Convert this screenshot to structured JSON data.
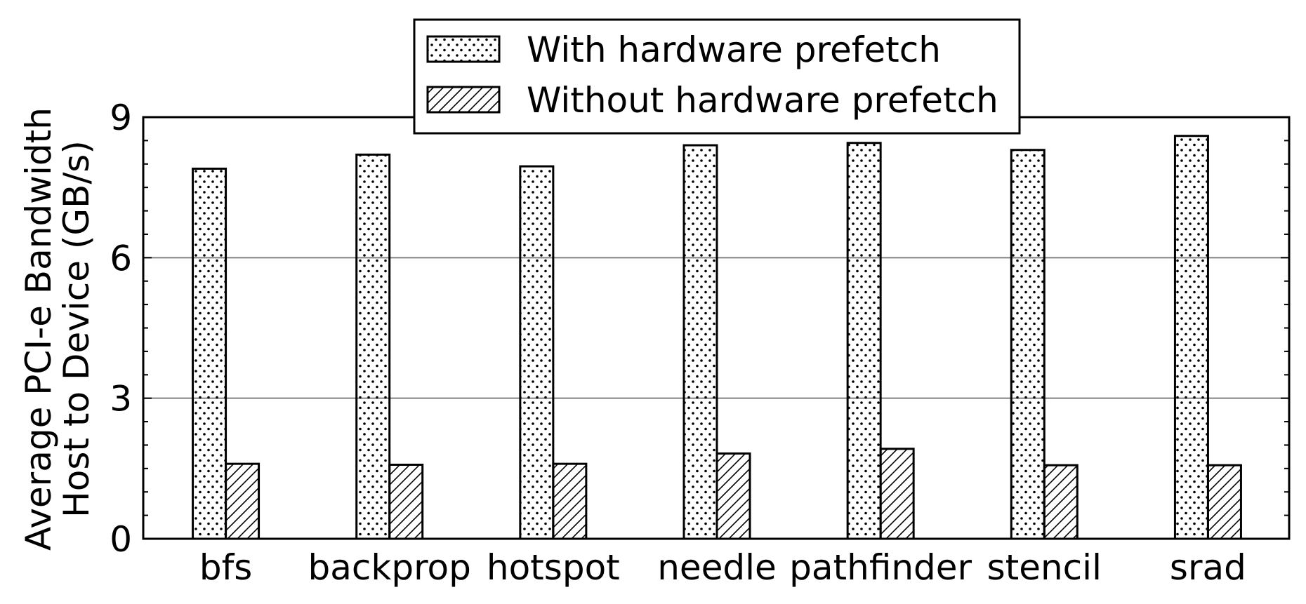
{
  "chart_data": {
    "type": "bar",
    "categories": [
      "bfs",
      "backprop",
      "hotspot",
      "needle",
      "pathfinder",
      "stencil",
      "srad"
    ],
    "series": [
      {
        "name": "With hardware prefetch",
        "pattern": "dots",
        "values": [
          7.9,
          8.2,
          7.95,
          8.4,
          8.45,
          8.3,
          8.6
        ]
      },
      {
        "name": "Without hardware prefetch",
        "pattern": "hatch",
        "values": [
          1.6,
          1.58,
          1.6,
          1.82,
          1.92,
          1.57,
          1.57
        ]
      }
    ],
    "ylabel_line1": "Average PCI-e Bandwidth",
    "ylabel_line2": "Host to Device (GB/s)",
    "ylim": [
      0,
      9
    ],
    "yticks": [
      "0",
      "3",
      "6",
      "9"
    ],
    "grid": "horizontal at major ticks",
    "legend_placement": "top-center",
    "colors": {
      "bar_fill": "#ffffff",
      "bar_edge": "#000000",
      "grid": "#808080"
    }
  }
}
